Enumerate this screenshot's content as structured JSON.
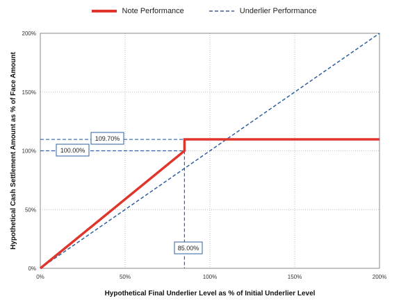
{
  "chart_data": {
    "type": "line",
    "xlabel": "Hypothetical Final Underlier Level as % of Initial  Underlier Level",
    "ylabel": "Hypothetical Cash Settlement Amount as % of Face Amount",
    "xlim": [
      0,
      200
    ],
    "ylim": [
      0,
      200
    ],
    "x_ticks": [
      0,
      50,
      100,
      150,
      200
    ],
    "y_ticks": [
      0,
      50,
      100,
      150,
      200
    ],
    "x_tick_labels": [
      "0%",
      "50%",
      "100%",
      "150%",
      "200%"
    ],
    "y_tick_labels": [
      "0%",
      "50%",
      "100%",
      "150%",
      "200%"
    ],
    "grid": true,
    "legend_position": "top-center",
    "series": [
      {
        "name": "Note Performance",
        "color": "#e0352b",
        "style": "solid",
        "points": [
          [
            0,
            0
          ],
          [
            85,
            100
          ],
          [
            85,
            109.7
          ],
          [
            200,
            109.7
          ]
        ]
      },
      {
        "name": "Underlier Performance",
        "color": "#2e5f9e",
        "style": "dashed",
        "points": [
          [
            0,
            0
          ],
          [
            200,
            200
          ]
        ]
      }
    ],
    "annotations": [
      {
        "label": "109.70%",
        "y": 109.7
      },
      {
        "label": "100.00%",
        "y": 100
      },
      {
        "label": "85.00%",
        "x": 85
      }
    ]
  }
}
